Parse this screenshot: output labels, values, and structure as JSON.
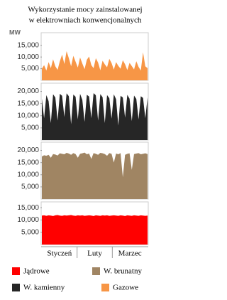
{
  "title": [
    "Wykorzystanie mocy zainstalowanej",
    "w elektrowniach konwencjonalnych"
  ],
  "unit": "MW",
  "months": [
    "Styczeń",
    "Luty",
    "Marzec"
  ],
  "chart_data": [
    {
      "type": "area",
      "ylim": [
        0,
        19500
      ],
      "yticks": [
        {
          "value": 5000,
          "label": "5,000"
        },
        {
          "value": 10000,
          "label": "10,000"
        },
        {
          "value": 15000,
          "label": "15,000"
        }
      ],
      "series": [
        {
          "name": "Gazowe",
          "color": "#f79646",
          "values": [
            5000,
            6500,
            4200,
            7800,
            5200,
            9000,
            6000,
            4500,
            8200,
            11000,
            7000,
            12500,
            9500,
            6000,
            10500,
            8000,
            5500,
            9800,
            7200,
            4800,
            8800,
            10200,
            6500,
            5200,
            9500,
            7600,
            4300,
            8400,
            6800,
            5600,
            9200,
            7400,
            4600,
            7800,
            6200,
            5000,
            8600,
            6900,
            4400,
            7500,
            6100,
            4700,
            8200,
            5800,
            4200,
            12000,
            6000,
            5200
          ]
        }
      ]
    },
    {
      "type": "area",
      "ylim": [
        0,
        22500
      ],
      "yticks": [
        {
          "value": 5000,
          "label": "5,000"
        },
        {
          "value": 10000,
          "label": "10,000"
        },
        {
          "value": 15000,
          "label": "15,000"
        },
        {
          "value": 20000,
          "label": "20,000"
        }
      ],
      "series": [
        {
          "name": "W. kamienny",
          "color": "#262626",
          "values": [
            17000,
            9000,
            18500,
            16000,
            7000,
            18800,
            17500,
            8000,
            19000,
            18200,
            9500,
            19200,
            18000,
            6500,
            18700,
            17800,
            8500,
            19000,
            16500,
            7500,
            18600,
            17900,
            9000,
            19300,
            18400,
            8000,
            18900,
            17600,
            7000,
            18500,
            17200,
            8800,
            18800,
            16800,
            6000,
            18200,
            17500,
            9200,
            18600,
            17000,
            7800,
            18300,
            16900,
            8500,
            18000,
            17300,
            9000,
            17500
          ]
        }
      ]
    },
    {
      "type": "area",
      "ylim": [
        0,
        22500
      ],
      "yticks": [
        {
          "value": 5000,
          "label": "5,000"
        },
        {
          "value": 10000,
          "label": "10,000"
        },
        {
          "value": 15000,
          "label": "15,000"
        },
        {
          "value": 20000,
          "label": "20,000"
        }
      ],
      "series": [
        {
          "name": "W. brunatny",
          "color": "#a08563",
          "values": [
            17500,
            18000,
            17800,
            18200,
            17000,
            18500,
            18300,
            17900,
            18800,
            18600,
            18400,
            19000,
            18700,
            18200,
            18900,
            18500,
            17000,
            18600,
            18800,
            19100,
            18400,
            18700,
            16500,
            18900,
            18600,
            18200,
            19000,
            18800,
            18500,
            17800,
            18900,
            18600,
            15000,
            18700,
            18400,
            18900,
            9000,
            18200,
            18600,
            18800,
            12000,
            18500,
            18700,
            18900,
            18400,
            18600,
            18800,
            18500
          ]
        }
      ]
    },
    {
      "type": "area",
      "ylim": [
        0,
        16500
      ],
      "yticks": [
        {
          "value": 5000,
          "label": "5,000"
        },
        {
          "value": 10000,
          "label": "10,000"
        },
        {
          "value": 15000,
          "label": "15,000"
        }
      ],
      "series": [
        {
          "name": "Jądrowe",
          "color": "#ff0000",
          "values": [
            11800,
            11900,
            11700,
            11900,
            11800,
            11600,
            11900,
            12000,
            11800,
            11700,
            11900,
            11800,
            11900,
            12000,
            11800,
            11700,
            11900,
            11800,
            11900,
            11700,
            11800,
            11900,
            11800,
            11600,
            11900,
            11800,
            11700,
            11900,
            11800,
            11900,
            11700,
            11800,
            11900,
            11800,
            11700,
            11900,
            11800,
            11600,
            11900,
            11800,
            11700,
            11900,
            11800,
            11700,
            11900,
            11800,
            11700,
            11800
          ]
        }
      ]
    }
  ]
}
